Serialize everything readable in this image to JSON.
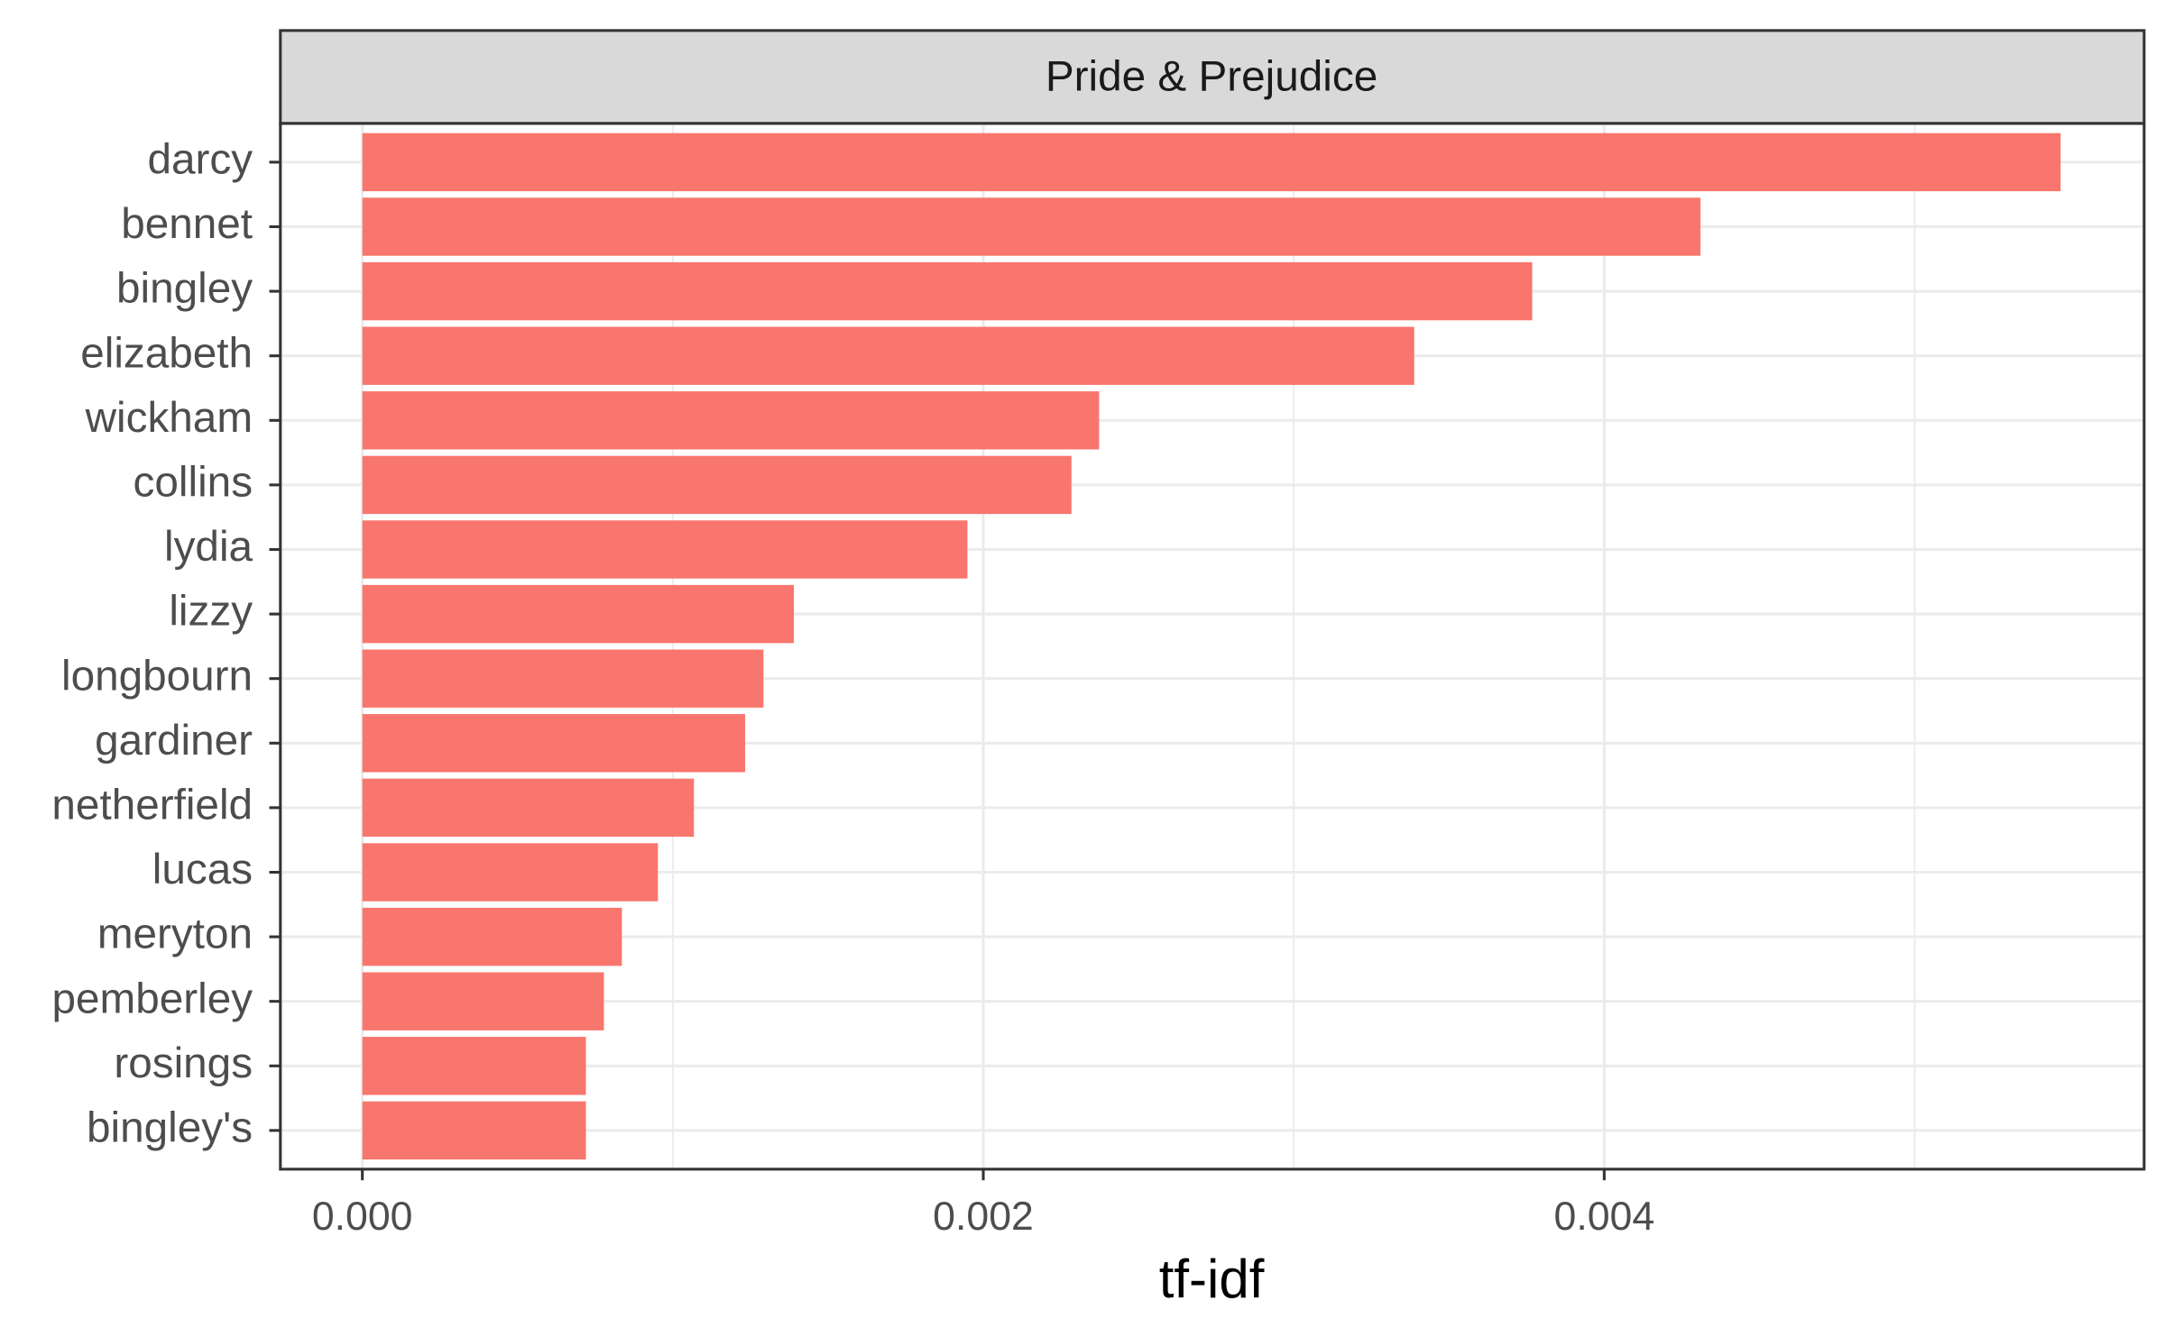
{
  "chart_data": {
    "type": "barh",
    "facet_title": "Pride & Prejudice",
    "x_label": "tf-idf",
    "categories": [
      "darcy",
      "bennet",
      "bingley",
      "elizabeth",
      "wickham",
      "collins",
      "lydia",
      "lizzy",
      "longbourn",
      "gardiner",
      "netherfield",
      "lucas",
      "meryton",
      "pemberley",
      "rosings",
      "bingley's"
    ],
    "values": [
      0.00547,
      0.00431,
      0.003768,
      0.003388,
      0.002373,
      0.002284,
      0.001949,
      0.00139,
      0.001292,
      0.001233,
      0.001068,
      0.000952,
      0.000836,
      0.000778,
      0.00072,
      0.00072
    ],
    "color": "#f8766d",
    "xlim": [
      -0.000264,
      0.005739
    ],
    "xticks": [
      {
        "value": 0,
        "label": "0.000"
      },
      {
        "value": 0.002,
        "label": "0.002"
      },
      {
        "value": 0.004,
        "label": "0.004"
      }
    ],
    "minor_xticks": [
      0.001,
      0.003,
      0.005
    ],
    "grid": true
  }
}
